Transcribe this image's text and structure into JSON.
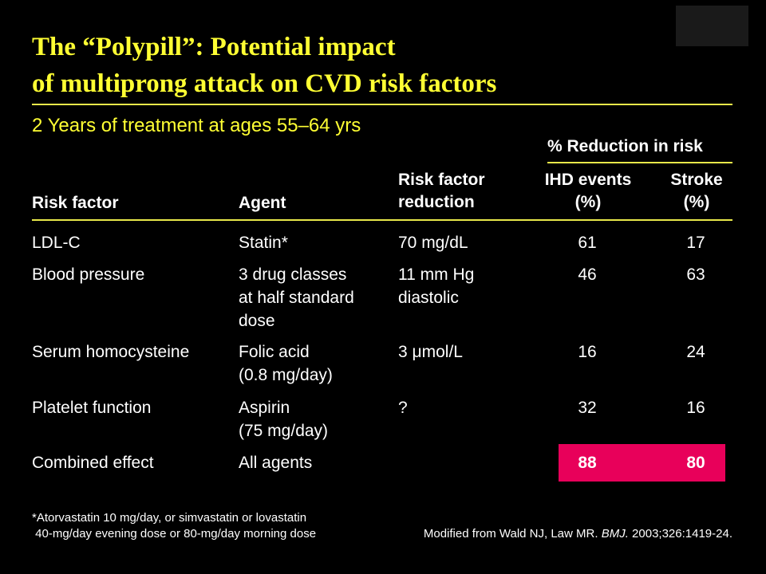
{
  "slide": {
    "title_line1": "The “Polypill”: Potential impact",
    "title_line2": "of multiprong attack on CVD risk factors",
    "subtitle": "2 Years of treatment at ages 55–64 yrs",
    "colors": {
      "title": "#ffff33",
      "background": "#000000",
      "highlight": "#e8005a",
      "rule": "#e8e84a"
    }
  },
  "table": {
    "group_header": "% Reduction in risk",
    "headers": {
      "risk_factor": "Risk factor",
      "agent": "Agent",
      "reduction_line1": "Risk factor",
      "reduction_line2": "reduction",
      "ihd_line1": "IHD events",
      "ihd_line2": "(%)",
      "stroke_line1": "Stroke",
      "stroke_line2": "(%)"
    },
    "rows": [
      {
        "risk_factor": "LDL-C",
        "agent": [
          "Statin*"
        ],
        "reduction": [
          "70 mg/dL"
        ],
        "ihd": "61",
        "stroke": "17"
      },
      {
        "risk_factor": "Blood pressure",
        "agent": [
          "3 drug classes",
          "at half standard",
          "dose"
        ],
        "reduction": [
          "11 mm Hg",
          "diastolic"
        ],
        "ihd": "46",
        "stroke": "63"
      },
      {
        "risk_factor": "Serum homocysteine",
        "agent": [
          "Folic acid",
          "(0.8 mg/day)"
        ],
        "reduction": [
          "3 μmol/L"
        ],
        "ihd": "16",
        "stroke": "24"
      },
      {
        "risk_factor": "Platelet function",
        "agent": [
          "Aspirin",
          "(75 mg/day)"
        ],
        "reduction": [
          "?"
        ],
        "ihd": "32",
        "stroke": "16"
      },
      {
        "risk_factor": "Combined effect",
        "agent": [
          "All agents"
        ],
        "reduction": [
          ""
        ],
        "ihd": "88",
        "stroke": "80"
      }
    ]
  },
  "footnote": {
    "line1": "*Atorvastatin 10 mg/day, or simvastatin or lovastatin",
    "line2": " 40-mg/day evening dose or 80-mg/day morning dose",
    "source_prefix": "Modified from Wald NJ, Law MR. ",
    "source_journal": "BMJ.",
    "source_suffix": " 2003;326:1419-24."
  }
}
